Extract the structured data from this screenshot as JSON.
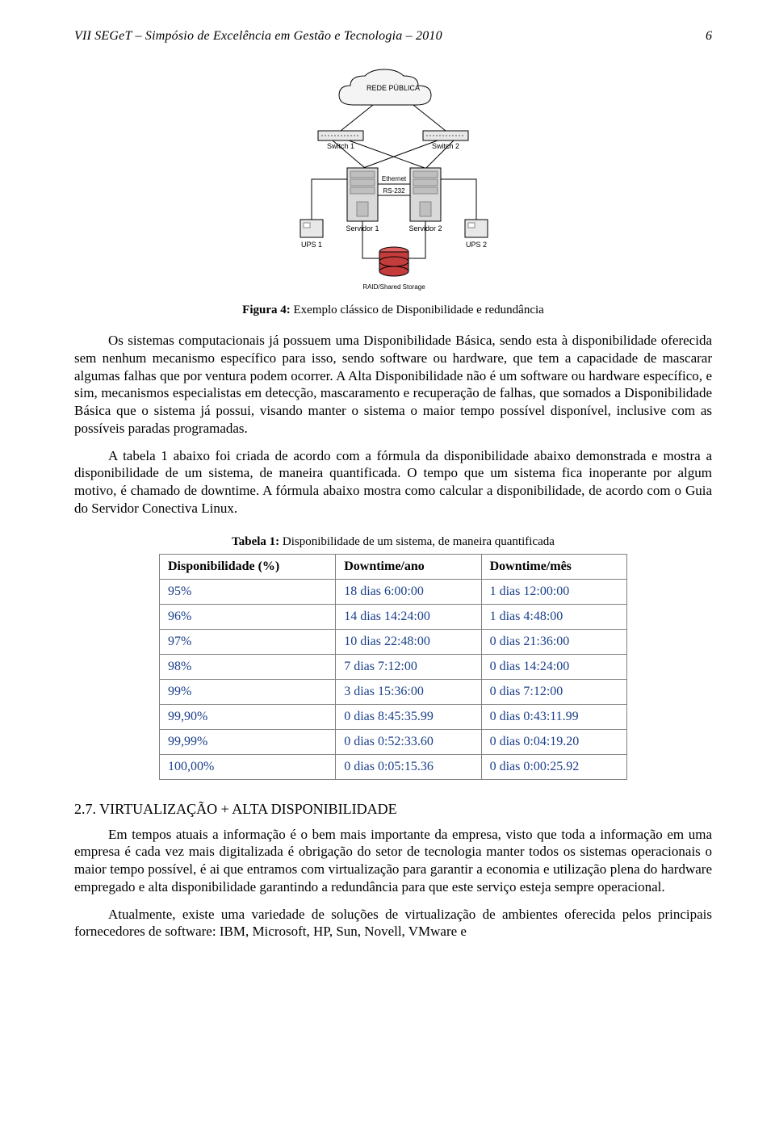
{
  "running_head": {
    "title": "VII SEGeT – Simpósio de Excelência em Gestão e Tecnologia – 2010",
    "page_number": "6"
  },
  "diagram": {
    "cloud_label": "REDE PÚBLICA",
    "switch1": "Switch 1",
    "switch2": "Switch 2",
    "ethernet_label": "Ethernet",
    "rs232_label": "RS-232",
    "server1": "Servidor 1",
    "server2": "Servidor 2",
    "ups1": "UPS 1",
    "ups2": "UPS 2",
    "storage_label": "RAID/Shared Storage",
    "colors": {
      "stroke": "#000000",
      "fill_box": "#e8e8e8",
      "fill_server": "#d9d9d9",
      "fill_db_top": "#e06060",
      "fill_db_body": "#c43c3c",
      "fill_cloud": "#f4f4f4",
      "text": "#000000"
    }
  },
  "figure_caption": {
    "label": "Figura 4:",
    "text": " Exemplo clássico de Disponibilidade e redundância"
  },
  "paragraphs": {
    "p1": "Os sistemas computacionais já possuem uma Disponibilidade Básica, sendo esta à disponibilidade oferecida sem nenhum mecanismo específico para isso, sendo software ou hardware, que tem a capacidade de mascarar algumas falhas que por ventura podem ocorrer. A Alta Disponibilidade não é um software ou hardware específico, e sim, mecanismos especialistas em detecção, mascaramento e recuperação de falhas, que somados a Disponibilidade Básica que o sistema já possui, visando manter o sistema o maior tempo possível disponível, inclusive com as possíveis paradas programadas.",
    "p2": "A tabela 1 abaixo foi criada de acordo com a fórmula da disponibilidade abaixo demonstrada e mostra a disponibilidade de um sistema, de maneira quantificada. O tempo que um sistema fica inoperante por algum motivo, é chamado de downtime. A fórmula abaixo mostra como calcular a disponibilidade, de acordo com o Guia do Servidor Conectiva Linux.",
    "p3": "Em tempos atuais a informação é o bem mais importante da empresa, visto que toda a informação em uma empresa é cada vez mais digitalizada é obrigação do setor de tecnologia manter todos os sistemas operacionais o maior tempo possível, é ai que entramos com virtualização para garantir a economia e utilização plena do hardware empregado e alta disponibilidade garantindo a redundância para que este serviço esteja sempre operacional.",
    "p4": "Atualmente, existe uma variedade de soluções de virtualização de ambientes oferecida pelos principais fornecedores de software: IBM, Microsoft, HP, Sun, Novell, VMware e"
  },
  "table": {
    "caption_label": "Tabela 1:",
    "caption_text": " Disponibilidade de um sistema, de maneira quantificada",
    "columns": [
      "Disponibilidade (%)",
      "Downtime/ano",
      "Downtime/mês"
    ],
    "rows": [
      [
        "95%",
        "18 dias 6:00:00",
        "1 dias 12:00:00"
      ],
      [
        "96%",
        "14 dias 14:24:00",
        "1 dias 4:48:00"
      ],
      [
        "97%",
        "10 dias 22:48:00",
        "0 dias 21:36:00"
      ],
      [
        "98%",
        "7 dias 7:12:00",
        "0 dias 14:24:00"
      ],
      [
        "99%",
        "3 dias 15:36:00",
        "0 dias 7:12:00"
      ],
      [
        "99,90%",
        "0 dias 8:45:35.99",
        "0 dias 0:43:11.99"
      ],
      [
        "99,99%",
        "0 dias 0:52:33.60",
        "0 dias 0:04:19.20"
      ],
      [
        "100,00%",
        "0 dias 0:05:15.36",
        "0 dias 0:00:25.92"
      ]
    ],
    "header_color": "#000000",
    "cell_color": "#1a3f8a",
    "border_color": "#808080"
  },
  "section_heading": "2.7. VIRTUALIZAÇÃO + ALTA DISPONIBILIDADE"
}
